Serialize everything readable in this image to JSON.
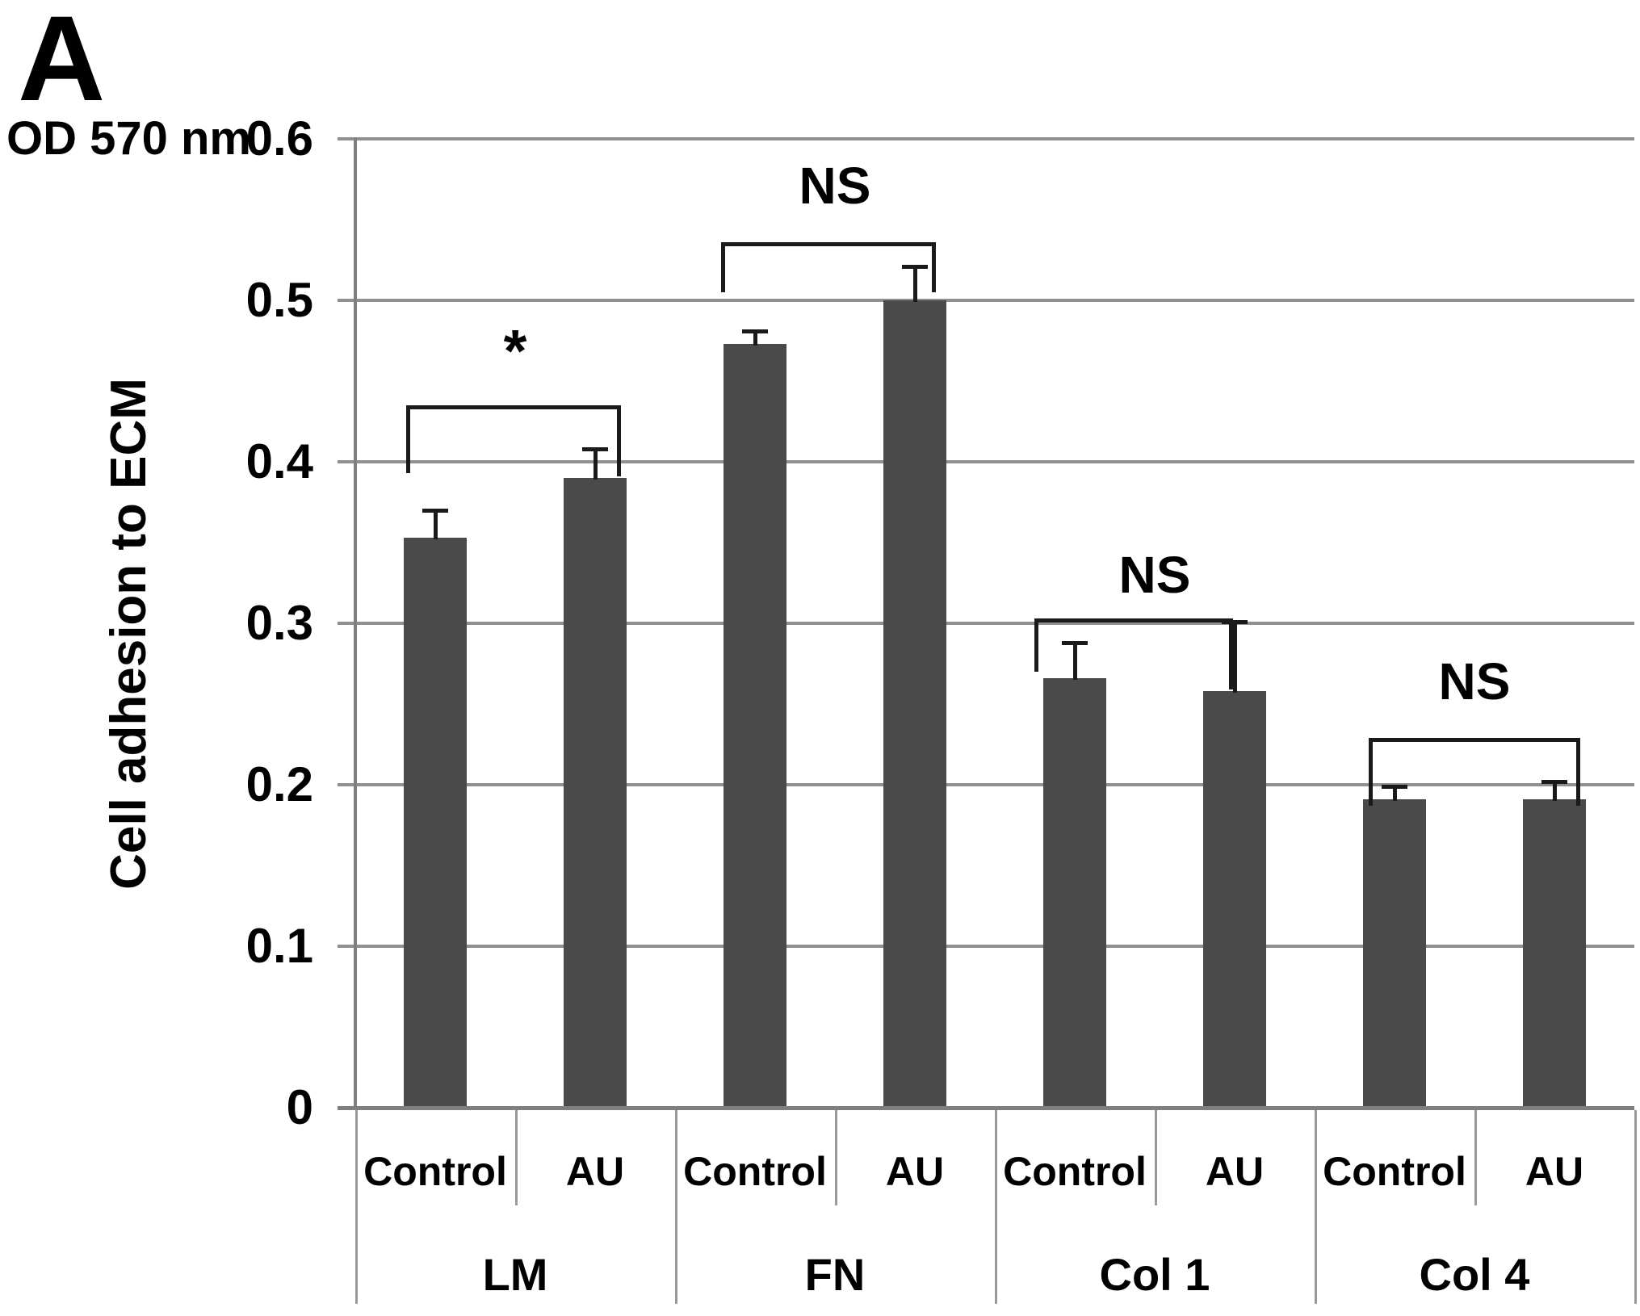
{
  "panel_label": "A",
  "unit_label": "OD 570 nm",
  "chart_data": {
    "type": "bar",
    "title": "",
    "ylabel": "Cell adhesion to ECM",
    "xlabel": "",
    "y_unit": "OD 570 nm",
    "ylim": [
      0,
      0.6
    ],
    "ytick_labels": [
      "0.6",
      "0.5",
      "0.4",
      "0.3",
      "0.2",
      "0.1",
      "0"
    ],
    "ytick_values": [
      0.6,
      0.5,
      0.4,
      0.3,
      0.2,
      0.1,
      0
    ],
    "grid": true,
    "legend": "none",
    "categories": [
      "LM",
      "FN",
      "Col 1",
      "Col 4"
    ],
    "series_labels": [
      "Control",
      "AU"
    ],
    "groups": [
      {
        "name": "LM",
        "bars": [
          {
            "label": "Control",
            "value": 0.353,
            "error": 0.016
          },
          {
            "label": "AU",
            "value": 0.39,
            "error": 0.017
          }
        ],
        "sig": {
          "label": "*",
          "line_level": 0.434,
          "drop_left": 0.042,
          "drop_right": 0.044,
          "label_level": 0.472,
          "dx1": -36,
          "dx2": 32
        }
      },
      {
        "name": "FN",
        "bars": [
          {
            "label": "Control",
            "value": 0.473,
            "error": 0.007
          },
          {
            "label": "AU",
            "value": 0.5,
            "error": 0.02
          }
        ],
        "sig": {
          "label": "NS",
          "line_level": 0.535,
          "drop_left": 0.031,
          "drop_right": 0.031,
          "label_level": 0.571,
          "dx1": -42,
          "dx2": 26
        }
      },
      {
        "name": "Col 1",
        "bars": [
          {
            "label": "Control",
            "value": 0.266,
            "error": 0.021
          },
          {
            "label": "AU",
            "value": 0.258,
            "error": 0.042
          }
        ],
        "sig": {
          "label": "NS",
          "line_level": 0.302,
          "drop_left": 0.033,
          "drop_right": 0.044,
          "label_level": 0.33,
          "dx1": -50,
          "dx2": -2
        }
      },
      {
        "name": "Col 4",
        "bars": [
          {
            "label": "Control",
            "value": 0.191,
            "error": 0.007
          },
          {
            "label": "AU",
            "value": 0.191,
            "error": 0.01
          }
        ],
        "sig": {
          "label": "NS",
          "line_level": 0.228,
          "drop_left": 0.042,
          "drop_right": 0.042,
          "label_level": 0.264,
          "dx1": -32,
          "dx2": 32
        }
      }
    ],
    "colors": {
      "bar": "#4a4a4a",
      "gridline": "#909090",
      "axis": "#7f7f7f",
      "separator": "#999999",
      "annotation": "#1a1a1a",
      "text": "#000000",
      "background": "#ffffff"
    }
  }
}
